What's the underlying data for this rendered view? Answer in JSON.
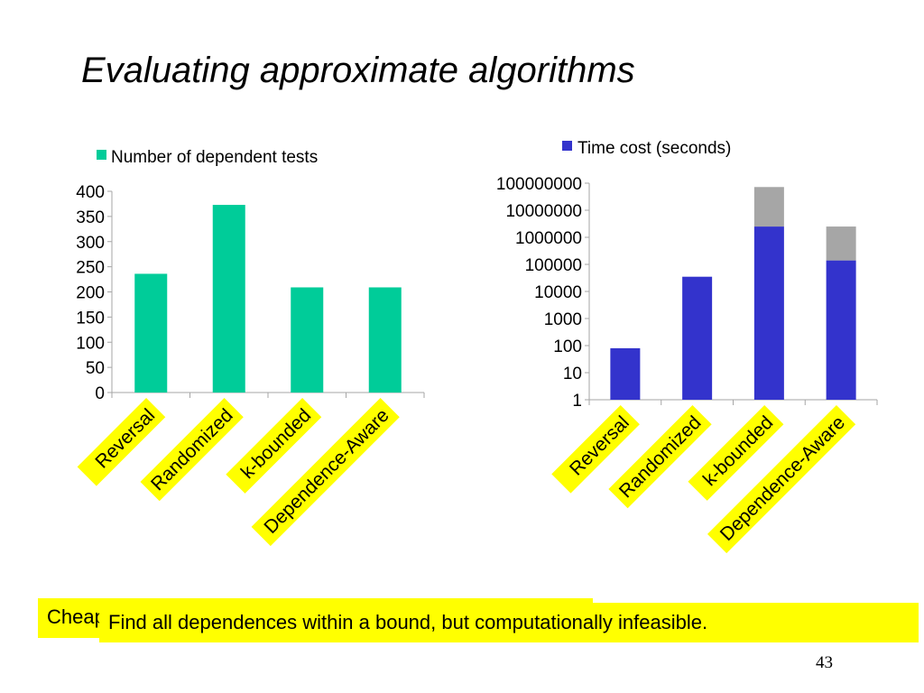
{
  "slide": {
    "title": "Evaluating approximate algorithms",
    "page_number": "43"
  },
  "callouts": {
    "back_text": "Cheap",
    "front_text": "Find all dependences within a bound, but computationally infeasible."
  },
  "colors": {
    "left_series": "#00cc99",
    "right_series": "#3333cc",
    "right_overlay": "#a6a6a6",
    "label_box": "#ffff00",
    "axis": "#a6a6a6"
  },
  "chart_data": [
    {
      "type": "bar",
      "legend": "Number of  dependent tests",
      "legend_position": "top",
      "categories": [
        "Reversal",
        "Randomized",
        "k-bounded",
        "Dependence-Aware"
      ],
      "series": [
        {
          "name": "Number of  dependent tests",
          "values": [
            236,
            373,
            209,
            209
          ]
        }
      ],
      "yticks": [
        "400",
        "350",
        "300",
        "250",
        "200",
        "150",
        "100",
        "50",
        "0"
      ],
      "ylim": [
        0,
        400
      ],
      "grid": false
    },
    {
      "type": "bar",
      "legend": "Time cost (seconds)",
      "legend_position": "top",
      "yscale": "log",
      "categories": [
        "Reversal",
        "Randomized",
        "k-bounded",
        "Dependence-Aware"
      ],
      "series": [
        {
          "name": "Time cost (seconds)",
          "values": [
            80,
            35000,
            2500000,
            140000
          ]
        },
        {
          "name": "",
          "values": [
            null,
            null,
            72000000,
            2500000
          ]
        }
      ],
      "yticks": [
        "100000000",
        "10000000",
        "1000000",
        "100000",
        "10000",
        "1000",
        "100",
        "10",
        "1"
      ],
      "ylim": [
        1,
        100000000
      ],
      "grid": false
    }
  ]
}
